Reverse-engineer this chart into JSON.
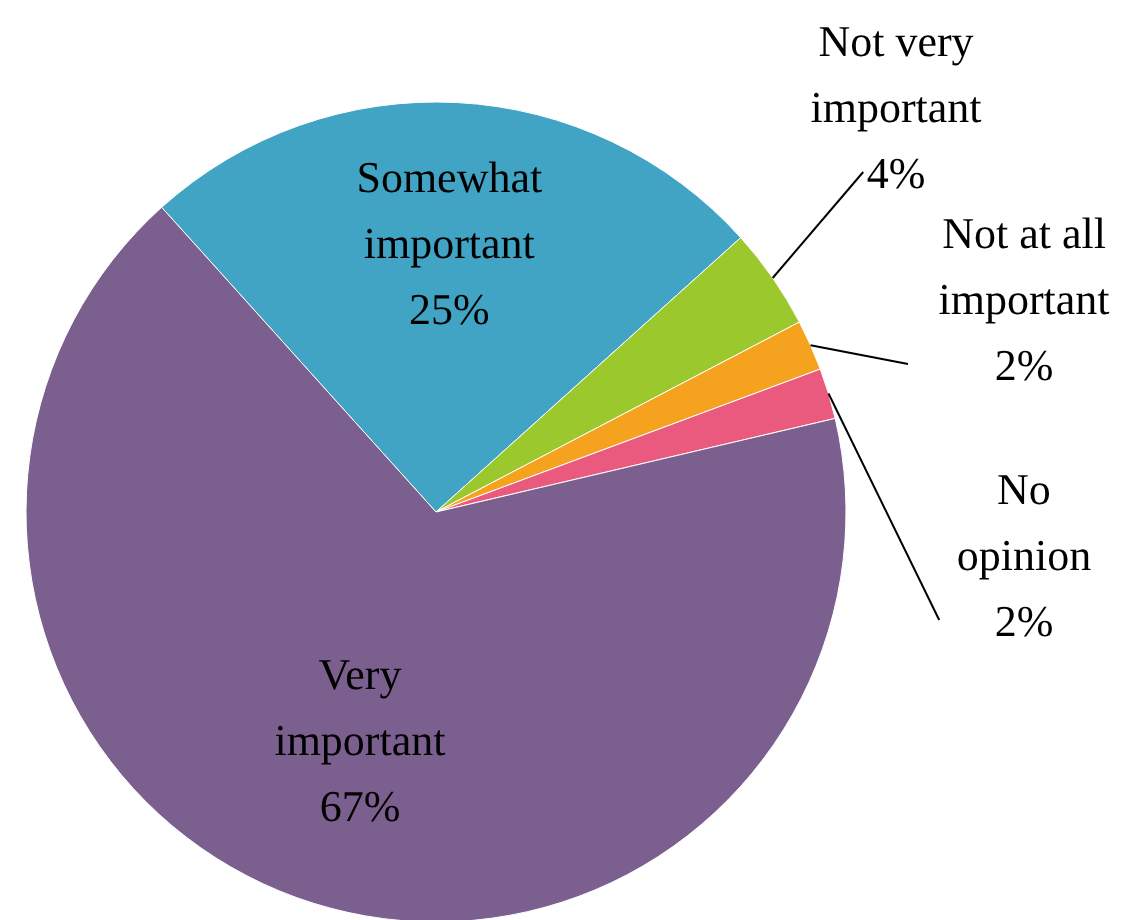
{
  "chart_data": {
    "type": "pie",
    "categories": [
      "Somewhat important",
      "Not very important",
      "Not at all important",
      "No opinion",
      "Very important"
    ],
    "values": [
      25,
      4,
      2,
      2,
      67
    ],
    "value_labels": [
      "25%",
      "4%",
      "2%",
      "2%",
      "67%"
    ],
    "colors": [
      "#41a4c4",
      "#9ac82d",
      "#f5a31e",
      "#ea5a7f",
      "#7b5f8e"
    ]
  }
}
